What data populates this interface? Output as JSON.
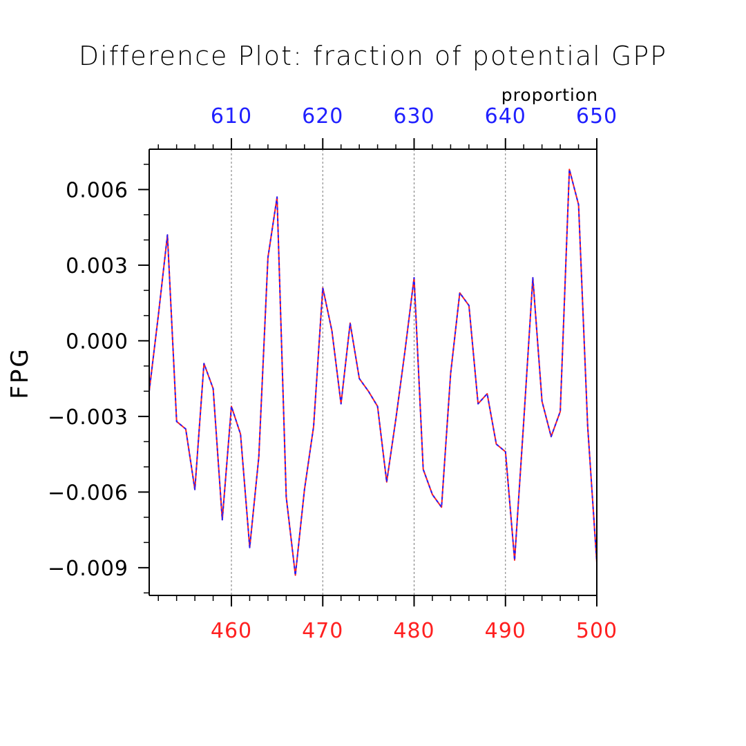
{
  "chart_data": {
    "type": "line",
    "title": "Difference Plot: fraction of potential GPP",
    "ylabel": "FPG",
    "top_axis_label": "proportion",
    "x_bottom": {
      "ticks": [
        460,
        470,
        480,
        490,
        500
      ],
      "tick_labels": [
        "460",
        "470",
        "480",
        "490",
        "500"
      ],
      "range": [
        451,
        500
      ],
      "color": "#ff2020"
    },
    "x_top": {
      "ticks": [
        610,
        620,
        630,
        640,
        650
      ],
      "tick_labels": [
        "610",
        "620",
        "630",
        "640",
        "650"
      ],
      "range": [
        601,
        650
      ],
      "color": "#2020ff"
    },
    "y": {
      "ticks": [
        0.006,
        0.003,
        0.0,
        -0.003,
        -0.006,
        -0.009
      ],
      "tick_labels": [
        "0.006",
        "0.003",
        "0.000",
        "−0.003",
        "−0.006",
        "−0.009"
      ],
      "range": [
        -0.0101,
        0.0076
      ]
    },
    "grid": "vertical dashed at major bottom ticks",
    "series": [
      {
        "color": "#ff2020",
        "style": "solid",
        "x": [
          451,
          452,
          453,
          454,
          455,
          456,
          457,
          458,
          459,
          460,
          461,
          462,
          463,
          464,
          465,
          466,
          467,
          468,
          469,
          470,
          471,
          472,
          473,
          474,
          475,
          476,
          477,
          478,
          479,
          480,
          481,
          482,
          483,
          484,
          485,
          486,
          487,
          488,
          489,
          490,
          491,
          492,
          493,
          494,
          495,
          496,
          497,
          498,
          499,
          500
        ],
        "values": [
          -0.002,
          0.001,
          0.0042,
          -0.0032,
          -0.0035,
          -0.0059,
          -0.0009,
          -0.0019,
          -0.0071,
          -0.0026,
          -0.0037,
          -0.0082,
          -0.0046,
          0.0033,
          0.0057,
          -0.0062,
          -0.0093,
          -0.0059,
          -0.0034,
          0.0021,
          0.0004,
          -0.0025,
          0.0007,
          -0.0015,
          -0.002,
          -0.0026,
          -0.0056,
          -0.0031,
          -0.0004,
          0.0025,
          -0.0051,
          -0.0061,
          -0.0066,
          -0.0013,
          0.0019,
          0.0014,
          -0.0025,
          -0.0021,
          -0.0041,
          -0.0044,
          -0.0087,
          -0.0032,
          0.0025,
          -0.0024,
          -0.0038,
          -0.0028,
          0.0068,
          0.0054,
          -0.0034,
          -0.0088
        ]
      },
      {
        "color": "#2020ff",
        "style": "dashed",
        "x": [
          601,
          602,
          603,
          604,
          605,
          606,
          607,
          608,
          609,
          610,
          611,
          612,
          613,
          614,
          615,
          616,
          617,
          618,
          619,
          620,
          621,
          622,
          623,
          624,
          625,
          626,
          627,
          628,
          629,
          630,
          631,
          632,
          633,
          634,
          635,
          636,
          637,
          638,
          639,
          640,
          641,
          642,
          643,
          644,
          645,
          646,
          647,
          648,
          649,
          650
        ],
        "values": [
          -0.002,
          0.001,
          0.0042,
          -0.0032,
          -0.0035,
          -0.0059,
          -0.0009,
          -0.0019,
          -0.0071,
          -0.0026,
          -0.0037,
          -0.0082,
          -0.0046,
          0.0033,
          0.0057,
          -0.0062,
          -0.0093,
          -0.0059,
          -0.0034,
          0.0021,
          0.0004,
          -0.0025,
          0.0007,
          -0.0015,
          -0.002,
          -0.0026,
          -0.0056,
          -0.0031,
          -0.0004,
          0.0025,
          -0.0051,
          -0.0061,
          -0.0066,
          -0.0013,
          0.0019,
          0.0014,
          -0.0025,
          -0.0021,
          -0.0041,
          -0.0044,
          -0.0087,
          -0.0032,
          0.0025,
          -0.0024,
          -0.0038,
          -0.0028,
          0.0068,
          0.0054,
          -0.0034,
          -0.0088
        ]
      }
    ]
  }
}
